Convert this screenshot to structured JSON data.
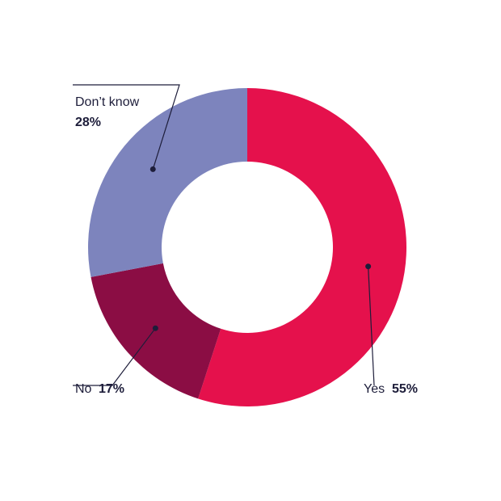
{
  "chart_data": {
    "type": "pie",
    "title": "",
    "categories": [
      "Yes",
      "No",
      "Don’t know"
    ],
    "values": [
      55,
      17,
      28
    ],
    "value_labels": [
      "55%",
      "17%",
      "28%"
    ],
    "colors": [
      "#e5114c",
      "#8b0d44",
      "#7d84bd"
    ],
    "label_color": "#1d1d3a",
    "background": "#ffffff"
  }
}
